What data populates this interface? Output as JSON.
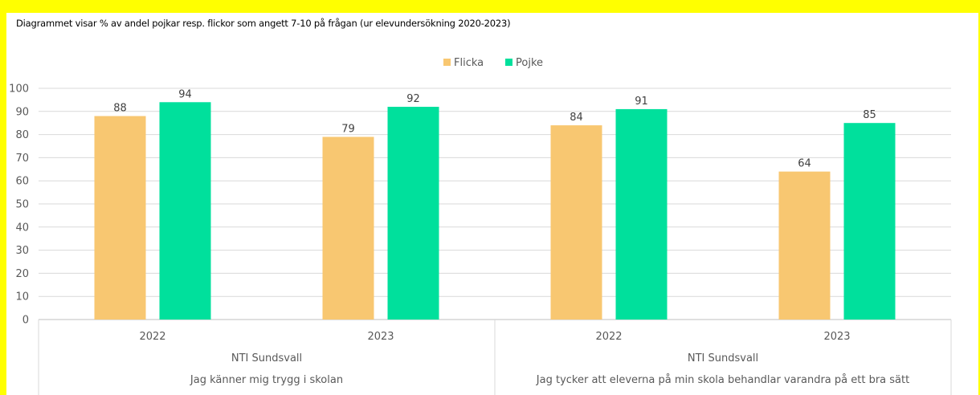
{
  "caption": "Diagrammet visar % av andel pojkar resp. flickor som angett 7-10 på frågan (ur elevundersökning 2020-2023)",
  "colors": {
    "Flicka": "#f8c771",
    "Pojke": "#00e09c",
    "grid": "#d9d9d9",
    "frame": "#ffff00"
  },
  "chart_data": {
    "type": "bar",
    "title": "",
    "ylim": [
      0,
      100
    ],
    "yticks": [
      0,
      10,
      20,
      30,
      40,
      50,
      60,
      70,
      80,
      90,
      100
    ],
    "grid": true,
    "legend_position": "top-center",
    "groups": [
      {
        "question": "Jag känner mig trygg i skolan",
        "school": "NTI Sundsvall",
        "years": [
          "2022",
          "2023"
        ]
      },
      {
        "question": "Jag tycker att eleverna på min skola behandlar varandra på ett bra sätt",
        "school": "NTI Sundsvall",
        "years": [
          "2022",
          "2023"
        ]
      }
    ],
    "categories": [
      "2022",
      "2023",
      "2022",
      "2023"
    ],
    "series": [
      {
        "name": "Flicka",
        "values": [
          88,
          79,
          84,
          64
        ]
      },
      {
        "name": "Pojke",
        "values": [
          94,
          92,
          91,
          85
        ]
      }
    ]
  }
}
